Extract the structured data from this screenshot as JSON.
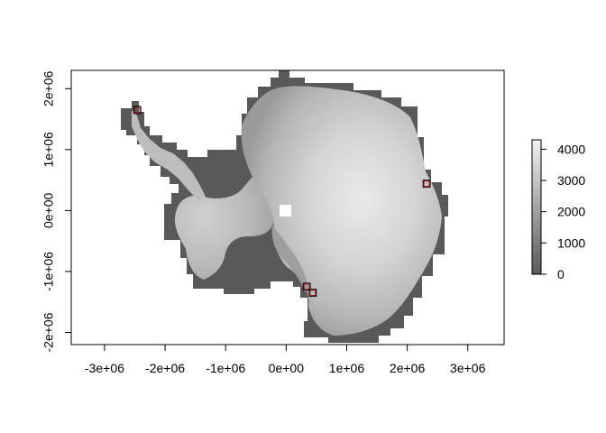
{
  "map": {
    "x_ticks": [
      "-3e+06",
      "-2e+06",
      "-1e+06",
      "0e+00",
      "1e+06",
      "2e+06",
      "3e+06"
    ],
    "y_ticks": [
      "-2e+06",
      "-1e+06",
      "0e+00",
      "1e+06",
      "2e+06"
    ],
    "x_tick_values": [
      -3000000,
      -2000000,
      -1000000,
      0,
      1000000,
      2000000,
      3000000
    ],
    "y_tick_values": [
      -2000000,
      -1000000,
      0,
      1000000,
      2000000
    ],
    "xlim": [
      -3550000,
      3600000
    ],
    "ylim": [
      -2200000,
      2300000
    ],
    "legend": {
      "ticks": [
        "0",
        "1000",
        "2000",
        "3000",
        "4000"
      ],
      "tick_values": [
        0,
        1000,
        2000,
        3000,
        4000
      ],
      "range": [
        0,
        4300
      ],
      "color_low": "#595959",
      "color_high": "#f2f2f2"
    },
    "markers": [
      {
        "name": "marker-antarctic-peninsula",
        "x": -2460000,
        "y": 1650000
      },
      {
        "name": "marker-east-coast",
        "x": 2320000,
        "y": 440000
      },
      {
        "name": "marker-ross-sea-1",
        "x": 340000,
        "y": -1250000
      },
      {
        "name": "marker-ross-sea-2",
        "x": 440000,
        "y": -1350000
      }
    ],
    "marker_color": "#8b1a1a",
    "background": "#ffffff",
    "low_elevation_color": "#595959"
  }
}
